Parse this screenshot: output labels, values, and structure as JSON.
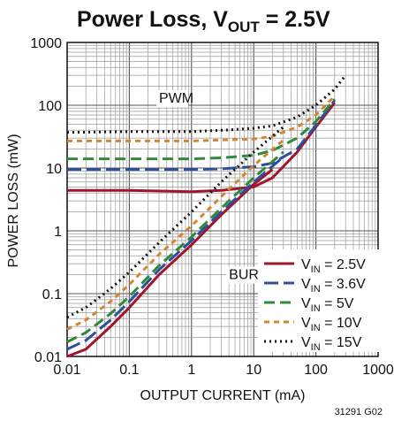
{
  "chart_data": {
    "type": "line",
    "title": {
      "main": "Power Loss, V",
      "sub": "OUT",
      "rest": " = 2.5V"
    },
    "xlabel": "OUTPUT CURRENT (mA)",
    "ylabel": "POWER LOSS (mW)",
    "xscale": "log",
    "yscale": "log",
    "xlim": [
      0.01,
      1000
    ],
    "ylim": [
      0.01,
      1000
    ],
    "xticks": [
      "0.01",
      "0.1",
      "1",
      "10",
      "100",
      "1000"
    ],
    "yticks": [
      "0.01",
      "0.1",
      "1",
      "10",
      "100",
      "1000"
    ],
    "grid": true,
    "annotations": [
      {
        "text": "PWM",
        "x": 0.3,
        "y": 110
      },
      {
        "text": "BURST",
        "x": 4,
        "y": 0.17
      }
    ],
    "legend_placement": "bottom-right",
    "figure_code": "31291 G02",
    "series": [
      {
        "name": "V",
        "name_sub": "IN",
        "name_rest": " = 2.5V",
        "color": "#a0152e",
        "dash": "",
        "pwm": [
          [
            0.01,
            4.4
          ],
          [
            0.1,
            4.4
          ],
          [
            1,
            4.2
          ],
          [
            3,
            4.4
          ],
          [
            10,
            5
          ],
          [
            20,
            7
          ],
          [
            50,
            18
          ],
          [
            100,
            45
          ],
          [
            200,
            110
          ]
        ],
        "burst": [
          [
            0.01,
            0.01
          ],
          [
            0.02,
            0.013
          ],
          [
            0.05,
            0.03
          ],
          [
            0.1,
            0.06
          ],
          [
            0.3,
            0.2
          ],
          [
            1,
            0.6
          ],
          [
            3,
            1.8
          ],
          [
            10,
            5.5
          ],
          [
            20,
            9.5
          ]
        ]
      },
      {
        "name": "V",
        "name_sub": "IN",
        "name_rest": " = 3.6V",
        "color": "#2e4f9c",
        "dash": "16,6",
        "pwm": [
          [
            0.01,
            9.5
          ],
          [
            0.1,
            9.5
          ],
          [
            1,
            9.5
          ],
          [
            3,
            9.7
          ],
          [
            10,
            10.5
          ],
          [
            20,
            12
          ],
          [
            50,
            20
          ],
          [
            100,
            48
          ],
          [
            200,
            120
          ]
        ],
        "burst": [
          [
            0.01,
            0.013
          ],
          [
            0.02,
            0.018
          ],
          [
            0.05,
            0.038
          ],
          [
            0.1,
            0.075
          ],
          [
            0.3,
            0.24
          ],
          [
            1,
            0.7
          ],
          [
            3,
            2
          ],
          [
            10,
            6
          ],
          [
            30,
            15
          ]
        ]
      },
      {
        "name": "V",
        "name_sub": "IN",
        "name_rest": " = 5V",
        "color": "#2f8a3e",
        "dash": "12,6",
        "pwm": [
          [
            0.01,
            14
          ],
          [
            0.1,
            14
          ],
          [
            1,
            14
          ],
          [
            3,
            14.5
          ],
          [
            10,
            16
          ],
          [
            20,
            19
          ],
          [
            50,
            30
          ],
          [
            100,
            55
          ],
          [
            200,
            125
          ]
        ],
        "burst": [
          [
            0.01,
            0.017
          ],
          [
            0.02,
            0.024
          ],
          [
            0.05,
            0.048
          ],
          [
            0.1,
            0.09
          ],
          [
            0.3,
            0.28
          ],
          [
            1,
            0.8
          ],
          [
            3,
            2.3
          ],
          [
            10,
            7
          ],
          [
            30,
            18
          ]
        ]
      },
      {
        "name": "V",
        "name_sub": "IN",
        "name_rest": " = 10V",
        "color": "#d4852f",
        "dash": "6,5",
        "pwm": [
          [
            0.01,
            27
          ],
          [
            0.1,
            27
          ],
          [
            1,
            27
          ],
          [
            3,
            28
          ],
          [
            10,
            29
          ],
          [
            20,
            32
          ],
          [
            50,
            45
          ],
          [
            100,
            70
          ],
          [
            200,
            140
          ]
        ],
        "burst": [
          [
            0.01,
            0.027
          ],
          [
            0.02,
            0.038
          ],
          [
            0.05,
            0.075
          ],
          [
            0.1,
            0.14
          ],
          [
            0.3,
            0.42
          ],
          [
            1,
            1.2
          ],
          [
            3,
            3.5
          ],
          [
            10,
            11
          ],
          [
            30,
            28
          ]
        ]
      },
      {
        "name": "V",
        "name_sub": "IN",
        "name_rest": " = 15V",
        "color": "#111111",
        "dash": "2,4",
        "pwm": [
          [
            0.01,
            37
          ],
          [
            0.1,
            38
          ],
          [
            1,
            38
          ],
          [
            3,
            40
          ],
          [
            10,
            43
          ],
          [
            20,
            47
          ],
          [
            50,
            65
          ],
          [
            100,
            100
          ],
          [
            200,
            180
          ],
          [
            300,
            300
          ]
        ],
        "burst": [
          [
            0.01,
            0.042
          ],
          [
            0.02,
            0.06
          ],
          [
            0.05,
            0.12
          ],
          [
            0.1,
            0.22
          ],
          [
            0.3,
            0.65
          ],
          [
            1,
            2
          ],
          [
            3,
            6
          ],
          [
            10,
            18
          ],
          [
            30,
            45
          ]
        ]
      }
    ]
  }
}
